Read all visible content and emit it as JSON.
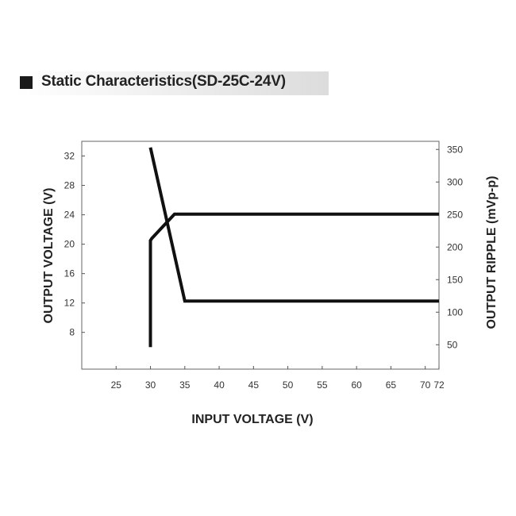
{
  "chart_data": {
    "type": "line",
    "title": "Static Characteristics(SD-25C-24V)",
    "xlabel": "INPUT VOLTAGE (V)",
    "ylabel": "OUTPUT VOLTAGE (V)",
    "y2label": "OUTPUT RIPPLE (mVp-p)",
    "xlim": [
      20,
      72
    ],
    "ylim": [
      3,
      34
    ],
    "y2lim": [
      12.5,
      362.5
    ],
    "x_ticks": [
      "25",
      "30",
      "35",
      "40",
      "45",
      "50",
      "55",
      "60",
      "65",
      "70",
      "72"
    ],
    "y_ticks": [
      "8",
      "12",
      "16",
      "20",
      "24",
      "28",
      "32"
    ],
    "y2_ticks": [
      "50",
      "100",
      "150",
      "200",
      "250",
      "300",
      "350"
    ],
    "grid": false,
    "series": [
      {
        "axis": "left",
        "x": [
          30,
          30,
          30.2,
          33.5,
          72
        ],
        "y": [
          6,
          20.5,
          20.8,
          24.1,
          24.1
        ]
      },
      {
        "axis": "right",
        "x": [
          30,
          35,
          72
        ],
        "y": [
          353,
          117,
          117
        ]
      }
    ]
  }
}
